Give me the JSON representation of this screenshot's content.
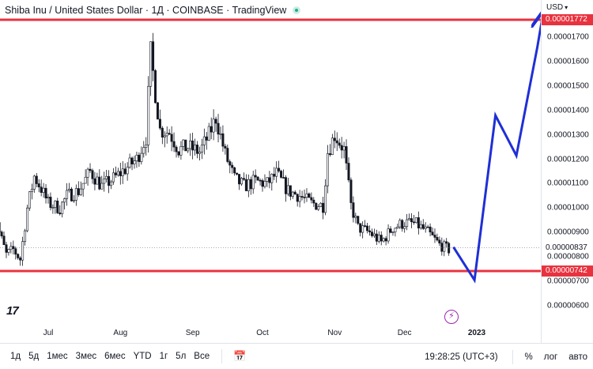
{
  "header": {
    "title": "Shiba Inu / United States Dollar · 1Д · COINBASE · TradingView"
  },
  "price_scale": {
    "currency": "USD",
    "ticks": [
      "0.00001700",
      "0.00001600",
      "0.00001500",
      "0.00001400",
      "0.00001300",
      "0.00001200",
      "0.00001100",
      "0.00001000",
      "0.00000900",
      "0.00000800",
      "0.00000700",
      "0.00000600"
    ],
    "top_level_label": "0.00001772",
    "bottom_level_label": "0.00000742",
    "last_price_label": "0.00000837"
  },
  "time_axis": {
    "months": [
      "Jul",
      "Aug",
      "Sep",
      "Oct",
      "Nov",
      "Dec",
      "2023"
    ]
  },
  "toolbar": {
    "timeframes": [
      "1д",
      "5д",
      "1мес",
      "3мес",
      "6мес",
      "YTD",
      "1г",
      "5л",
      "Все"
    ],
    "clock": "19:28:25 (UTC+3)",
    "percent_label": "%",
    "log_label": "лог",
    "auto_label": "авто"
  },
  "colors": {
    "candle_up": "#131722",
    "candle_down": "#131722",
    "level_line": "#e8333f",
    "projection": "#1f2fd6",
    "lightning": "#9c27b0"
  },
  "icons": {
    "logo": "tradingview-logo-icon",
    "lightning": "lightning-icon",
    "settings": "gear-icon",
    "compare": "compare-calendar-icon"
  },
  "chart_data": {
    "type": "candlestick",
    "symbol": "SHIB/USD",
    "interval": "1D",
    "levels": [
      1.772e-05,
      7.42e-06
    ],
    "last_price": 8.37e-06,
    "ylim": [
      5.5e-06,
      1.86e-05
    ],
    "y_scale": "linear",
    "grid": false,
    "projection_points": [
      {
        "date": "2022-12-22",
        "y": 8.4e-06
      },
      {
        "date": "2022-12-31",
        "y": 7.05e-06
      },
      {
        "date": "2023-01-09",
        "y": 1.38e-05
      },
      {
        "date": "2023-01-18",
        "y": 1.215e-05
      },
      {
        "date": "2023-01-27",
        "y": 1.66e-05
      },
      {
        "date": "2023-01-29",
        "y": 1.772e-05
      }
    ],
    "series_path": [
      [
        "2022-06-07",
        1.05e-05
      ],
      [
        "2022-06-10",
        9e-06
      ],
      [
        "2022-06-13",
        8.1e-06
      ],
      [
        "2022-06-16",
        8.3e-06
      ],
      [
        "2022-06-19",
        7.9e-06
      ],
      [
        "2022-06-22",
        1e-05
      ],
      [
        "2022-06-25",
        1.13e-05
      ],
      [
        "2022-06-28",
        1.08e-05
      ],
      [
        "2022-07-01",
        1.02e-05
      ],
      [
        "2022-07-06",
        1e-05
      ],
      [
        "2022-07-09",
        1.05e-05
      ],
      [
        "2022-07-14",
        1.07e-05
      ],
      [
        "2022-07-19",
        1.15e-05
      ],
      [
        "2022-07-24",
        1.09e-05
      ],
      [
        "2022-07-29",
        1.12e-05
      ],
      [
        "2022-08-03",
        1.16e-05
      ],
      [
        "2022-08-08",
        1.2e-05
      ],
      [
        "2022-08-12",
        1.29e-05
      ],
      [
        "2022-08-14",
        1.64e-05
      ],
      [
        "2022-08-16",
        1.47e-05
      ],
      [
        "2022-08-18",
        1.32e-05
      ],
      [
        "2022-08-22",
        1.31e-05
      ],
      [
        "2022-08-26",
        1.24e-05
      ],
      [
        "2022-08-30",
        1.25e-05
      ],
      [
        "2022-09-04",
        1.23e-05
      ],
      [
        "2022-09-08",
        1.3e-05
      ],
      [
        "2022-09-11",
        1.37e-05
      ],
      [
        "2022-09-15",
        1.22e-05
      ],
      [
        "2022-09-19",
        1.12e-05
      ],
      [
        "2022-09-23",
        1.09e-05
      ],
      [
        "2022-09-28",
        1.11e-05
      ],
      [
        "2022-10-03",
        1.1e-05
      ],
      [
        "2022-10-07",
        1.14e-05
      ],
      [
        "2022-10-12",
        1.07e-05
      ],
      [
        "2022-10-17",
        1.05e-05
      ],
      [
        "2022-10-22",
        1.02e-05
      ],
      [
        "2022-10-27",
        1.01e-05
      ],
      [
        "2022-10-29",
        1.23e-05
      ],
      [
        "2022-11-01",
        1.3e-05
      ],
      [
        "2022-11-05",
        1.24e-05
      ],
      [
        "2022-11-08",
        1.01e-05
      ],
      [
        "2022-11-11",
        9.2e-06
      ],
      [
        "2022-11-16",
        9e-06
      ],
      [
        "2022-11-21",
        8.6e-06
      ],
      [
        "2022-11-26",
        9.2e-06
      ],
      [
        "2022-12-01",
        9.4e-06
      ],
      [
        "2022-12-06",
        9.35e-06
      ],
      [
        "2022-12-11",
        9e-06
      ],
      [
        "2022-12-16",
        8.5e-06
      ],
      [
        "2022-12-20",
        8.3e-06
      ]
    ]
  }
}
